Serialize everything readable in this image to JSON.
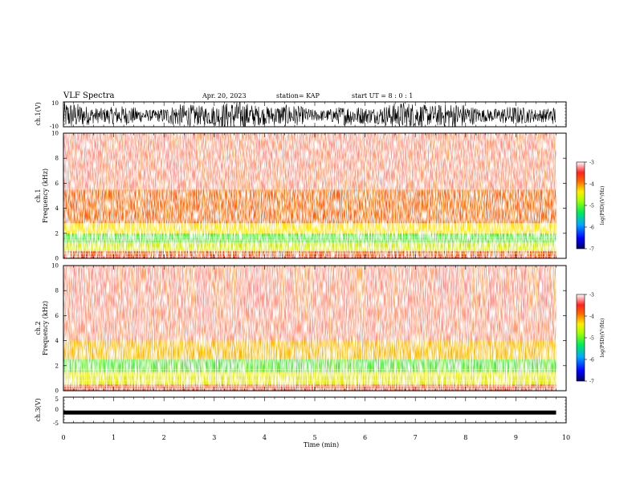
{
  "header": {
    "title": "VLF Spectra",
    "date": "Apr. 20, 2023",
    "station": "station= KAP",
    "start": "start  UT  =   8  : 0   : 1"
  },
  "colors": {
    "spectro_bg": "#ff3b30",
    "speckle": "#ffffff",
    "band_yellow": "#ffee00",
    "band_green": "#33ee33",
    "trace": "#000000"
  },
  "chart_data": [
    {
      "type": "line",
      "panel": "ch1-waveform",
      "ylabel": "ch.1(V)",
      "ylim": [
        -10,
        10
      ],
      "y_tick_labels": [
        "10",
        "-10"
      ],
      "x_range_min": [
        0,
        9.8
      ],
      "description_values": "dense noise waveform oscillating roughly between -10 and 10 V"
    },
    {
      "type": "heatmap",
      "panel": "ch1-spectrogram",
      "ylabel": "ch.1\nFrequency (kHz)",
      "ylim": [
        0,
        10
      ],
      "y_tick_labels": [
        "0",
        "2",
        "4",
        "6",
        "8",
        "10"
      ],
      "x_range_min": [
        0,
        9.8
      ],
      "bands_khz": [
        {
          "from": 0.0,
          "to": 0.6,
          "level": "red"
        },
        {
          "from": 0.6,
          "to": 1.2,
          "level": "green-yellow"
        },
        {
          "from": 1.2,
          "to": 2.0,
          "level": "green"
        },
        {
          "from": 2.0,
          "to": 2.8,
          "level": "yellow"
        },
        {
          "from": 2.8,
          "to": 5.5,
          "level": "orange-red"
        },
        {
          "from": 5.5,
          "to": 10.0,
          "level": "sparse-red"
        }
      ],
      "colorbar": {
        "label": "log(PSD)(V²/Hz)",
        "range": [
          -7,
          -3
        ],
        "tick_labels": [
          "-3",
          "-4",
          "-5",
          "-6",
          "-7"
        ]
      }
    },
    {
      "type": "heatmap",
      "panel": "ch2-spectrogram",
      "ylabel": "ch.2\nFrequency (kHz)",
      "ylim": [
        0,
        10
      ],
      "y_tick_labels": [
        "0",
        "2",
        "4",
        "6",
        "8",
        "10"
      ],
      "x_range_min": [
        0,
        9.8
      ],
      "bands_khz": [
        {
          "from": 0.0,
          "to": 0.5,
          "level": "red"
        },
        {
          "from": 0.5,
          "to": 1.5,
          "level": "yellow-green"
        },
        {
          "from": 1.5,
          "to": 2.5,
          "level": "green"
        },
        {
          "from": 2.5,
          "to": 4.0,
          "level": "yellow-orange"
        },
        {
          "from": 4.0,
          "to": 10.0,
          "level": "sparse-red"
        }
      ],
      "colorbar": {
        "label": "log(PSD)(V²/Hz)",
        "range": [
          -7,
          -3
        ],
        "tick_labels": [
          "-3",
          "-4",
          "-5",
          "-6",
          "-7"
        ]
      }
    },
    {
      "type": "line",
      "panel": "ch3-waveform",
      "ylabel": "ch.3(V)",
      "ylim": [
        -5,
        5
      ],
      "y_tick_labels": [
        "5",
        "0",
        "-5"
      ],
      "x_range_min": [
        0,
        9.8
      ],
      "description_values": "thick flat trace near -1 V"
    }
  ],
  "xaxis": {
    "label": "Time (min)",
    "range": [
      0,
      10
    ],
    "tick_labels": [
      "0",
      "1",
      "2",
      "3",
      "4",
      "5",
      "6",
      "7",
      "8",
      "9",
      "10"
    ]
  },
  "colorbar_label": "log(PSD)(V²/Hz)"
}
